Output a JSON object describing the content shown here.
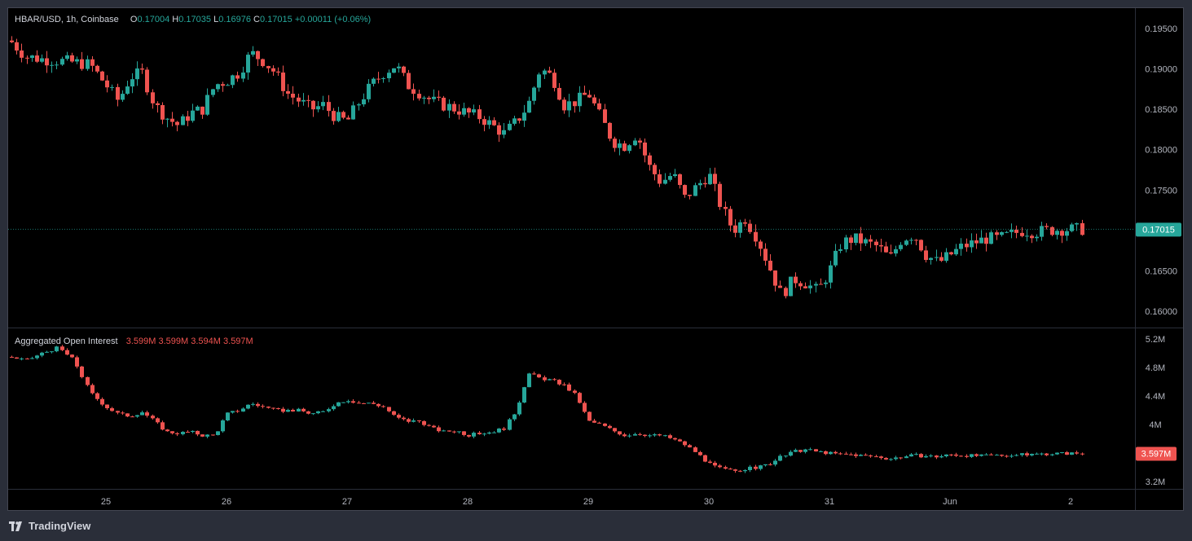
{
  "symbol_legend": {
    "title": "HBAR/USD, 1h, Coinbase",
    "o_label": "O",
    "o_value": "0.17004",
    "h_label": "H",
    "h_value": "0.17035",
    "l_label": "L",
    "l_value": "0.16976",
    "c_label": "C",
    "c_value": "0.17015",
    "change": "+0.00011 (+0.06%)"
  },
  "oi_legend": {
    "title": "Aggregated Open Interest",
    "o_value": "3.599M",
    "h_value": "3.599M",
    "l_value": "3.594M",
    "c_value": "3.597M"
  },
  "price_axis": {
    "ticks": [
      "0.19500",
      "0.19000",
      "0.18500",
      "0.18000",
      "0.17500",
      "0.17000",
      "0.16500",
      "0.16000"
    ],
    "last_price_label": "0.17015"
  },
  "oi_axis": {
    "ticks": [
      "5.2M",
      "4.8M",
      "4.4M",
      "4M",
      "3.6M",
      "3.2M"
    ],
    "last_value_label": "3.597M"
  },
  "time_axis": {
    "labels": [
      "25",
      "26",
      "27",
      "28",
      "29",
      "30",
      "31",
      "Jun",
      "2"
    ]
  },
  "footer": {
    "brand": "TradingView"
  },
  "colors": {
    "up": "#26a69a",
    "down": "#ef5350",
    "background": "#000000",
    "frame": "#2a2e39"
  },
  "chart_data": [
    {
      "type": "candlestick",
      "title": "HBAR/USD, 1h, Coinbase",
      "ylim": [
        0.158,
        0.1975
      ],
      "x_labels": [
        "25",
        "26",
        "27",
        "28",
        "29",
        "30",
        "31",
        "Jun",
        "2"
      ],
      "close_path_approx": [
        [
          0.1935,
          0.1915,
          0.1912,
          0.191,
          0.1908,
          0.1905
        ],
        [
          0.188,
          0.186,
          0.189,
          0.1895,
          0.1855,
          0.184,
          0.183,
          0.1845,
          0.185,
          0.188
        ],
        [
          0.1885,
          0.1895,
          0.192,
          0.191,
          0.1895,
          0.187,
          0.186,
          0.185,
          0.1855,
          0.184
        ],
        [
          0.1835,
          0.186,
          0.188,
          0.1895,
          0.1905,
          0.188,
          0.187,
          0.186,
          0.1855,
          0.185
        ],
        [
          0.1845,
          0.184,
          0.183,
          0.182,
          0.1835,
          0.1855,
          0.19,
          0.189,
          0.1855,
          0.186
        ],
        [
          0.187,
          0.184,
          0.181,
          0.1805,
          0.182,
          0.178,
          0.176,
          0.177,
          0.174,
          0.1755
        ],
        [
          0.177,
          0.173,
          0.17,
          0.1715,
          0.169,
          0.1655,
          0.162,
          0.164,
          0.1635,
          0.1625
        ],
        [
          0.165,
          0.1685,
          0.169,
          0.1685,
          0.168,
          0.1665,
          0.169,
          0.1695,
          0.167,
          0.166
        ],
        [
          0.167,
          0.168,
          0.1685,
          0.169,
          0.169,
          0.1695,
          0.17,
          0.1698,
          0.17,
          0.17015
        ]
      ]
    },
    {
      "type": "candlestick",
      "title": "Aggregated Open Interest",
      "ylim": [
        3.1,
        5.35
      ],
      "x_labels": [
        "25",
        "26",
        "27",
        "28",
        "29",
        "30",
        "31",
        "Jun",
        "2"
      ],
      "close_path_approx": [
        [
          4.95,
          4.9,
          5.0,
          5.08,
          4.9,
          4.45
        ],
        [
          4.25,
          4.15,
          4.12,
          4.18,
          4.05,
          3.9,
          3.88,
          3.9,
          3.85,
          3.85
        ],
        [
          4.15,
          4.2,
          4.3,
          4.25,
          4.2,
          4.2,
          4.2,
          4.15,
          4.18,
          4.3
        ],
        [
          4.35,
          4.3,
          4.3,
          4.25,
          4.1,
          4.05,
          4.05,
          3.95,
          3.9,
          3.92
        ],
        [
          3.85,
          3.88,
          3.9,
          3.95,
          4.2,
          4.72,
          4.65,
          4.62,
          4.55,
          4.4
        ],
        [
          4.05,
          4.0,
          3.92,
          3.85,
          3.88,
          3.85,
          3.85,
          3.8,
          3.72,
          3.6
        ],
        [
          3.45,
          3.38,
          3.35,
          3.38,
          3.4,
          3.45,
          3.55,
          3.62,
          3.65,
          3.62
        ],
        [
          3.6,
          3.58,
          3.58,
          3.56,
          3.55,
          3.52,
          3.55,
          3.57,
          3.56,
          3.55
        ],
        [
          3.58,
          3.57,
          3.56,
          3.57,
          3.57,
          3.58,
          3.59,
          3.597
        ]
      ]
    }
  ]
}
